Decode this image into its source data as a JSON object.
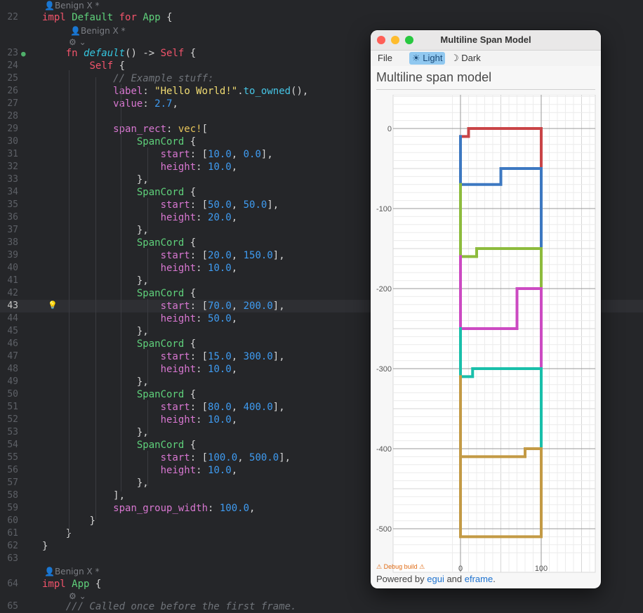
{
  "editor": {
    "author_hints": [
      "Benign X *",
      "Benign X *",
      "Benign X *",
      "Benign X *"
    ],
    "lines": [
      {
        "n": "22",
        "tokens": [
          [
            "impl",
            "k-red"
          ],
          [
            " ",
            ""
          ],
          [
            "Default",
            "k-green"
          ],
          [
            " ",
            ""
          ],
          [
            "for",
            "k-red"
          ],
          [
            " ",
            ""
          ],
          [
            "App",
            "k-green"
          ],
          [
            " {",
            ""
          ]
        ]
      },
      {
        "n": "23",
        "tokens": [
          [
            "    ",
            ""
          ],
          [
            "fn",
            "k-red"
          ],
          [
            " ",
            ""
          ],
          [
            "default",
            "k-cyan"
          ],
          [
            "() -> ",
            ""
          ],
          [
            "Self",
            "k-red"
          ],
          [
            " {",
            ""
          ]
        ]
      },
      {
        "n": "24",
        "tokens": [
          [
            "        ",
            ""
          ],
          [
            "Self",
            "k-red"
          ],
          [
            " {",
            ""
          ]
        ]
      },
      {
        "n": "25",
        "tokens": [
          [
            "            ",
            ""
          ],
          [
            "// Example stuff:",
            "k-com"
          ]
        ]
      },
      {
        "n": "26",
        "tokens": [
          [
            "            ",
            ""
          ],
          [
            "label",
            "k-pink"
          ],
          [
            ": ",
            ""
          ],
          [
            "\"Hello World!\"",
            "k-str"
          ],
          [
            ".",
            ""
          ],
          [
            "to_owned",
            "k-fn"
          ],
          [
            "(),",
            ""
          ]
        ]
      },
      {
        "n": "27",
        "tokens": [
          [
            "            ",
            ""
          ],
          [
            "value",
            "k-pink"
          ],
          [
            ": ",
            ""
          ],
          [
            "2.7",
            "k-num"
          ],
          [
            ",",
            ""
          ]
        ]
      },
      {
        "n": "28",
        "tokens": []
      },
      {
        "n": "29",
        "tokens": [
          [
            "            ",
            ""
          ],
          [
            "span_rect",
            "k-pink"
          ],
          [
            ": ",
            ""
          ],
          [
            "vec!",
            "k-yellow"
          ],
          [
            "[",
            ""
          ]
        ]
      },
      {
        "n": "30",
        "tokens": [
          [
            "                ",
            ""
          ],
          [
            "SpanCord",
            "k-green"
          ],
          [
            " {",
            ""
          ]
        ]
      },
      {
        "n": "31",
        "tokens": [
          [
            "                    ",
            ""
          ],
          [
            "start",
            "k-pink"
          ],
          [
            ": [",
            ""
          ],
          [
            "10.0",
            "k-num"
          ],
          [
            ", ",
            ""
          ],
          [
            "0.0",
            "k-num"
          ],
          [
            "],",
            ""
          ]
        ]
      },
      {
        "n": "32",
        "tokens": [
          [
            "                    ",
            ""
          ],
          [
            "height",
            "k-pink"
          ],
          [
            ": ",
            ""
          ],
          [
            "10.0",
            "k-num"
          ],
          [
            ",",
            ""
          ]
        ]
      },
      {
        "n": "33",
        "tokens": [
          [
            "                ",
            ""
          ],
          [
            "},",
            ""
          ]
        ]
      },
      {
        "n": "34",
        "tokens": [
          [
            "                ",
            ""
          ],
          [
            "SpanCord",
            "k-green"
          ],
          [
            " {",
            ""
          ]
        ]
      },
      {
        "n": "35",
        "tokens": [
          [
            "                    ",
            ""
          ],
          [
            "start",
            "k-pink"
          ],
          [
            ": [",
            ""
          ],
          [
            "50.0",
            "k-num"
          ],
          [
            ", ",
            ""
          ],
          [
            "50.0",
            "k-num"
          ],
          [
            "],",
            ""
          ]
        ]
      },
      {
        "n": "36",
        "tokens": [
          [
            "                    ",
            ""
          ],
          [
            "height",
            "k-pink"
          ],
          [
            ": ",
            ""
          ],
          [
            "20.0",
            "k-num"
          ],
          [
            ",",
            ""
          ]
        ]
      },
      {
        "n": "37",
        "tokens": [
          [
            "                ",
            ""
          ],
          [
            "},",
            ""
          ]
        ]
      },
      {
        "n": "38",
        "tokens": [
          [
            "                ",
            ""
          ],
          [
            "SpanCord",
            "k-green"
          ],
          [
            " {",
            ""
          ]
        ]
      },
      {
        "n": "39",
        "tokens": [
          [
            "                    ",
            ""
          ],
          [
            "start",
            "k-pink"
          ],
          [
            ": [",
            ""
          ],
          [
            "20.0",
            "k-num"
          ],
          [
            ", ",
            ""
          ],
          [
            "150.0",
            "k-num"
          ],
          [
            "],",
            ""
          ]
        ]
      },
      {
        "n": "40",
        "tokens": [
          [
            "                    ",
            ""
          ],
          [
            "height",
            "k-pink"
          ],
          [
            ": ",
            ""
          ],
          [
            "10.0",
            "k-num"
          ],
          [
            ",",
            ""
          ]
        ]
      },
      {
        "n": "41",
        "tokens": [
          [
            "                ",
            ""
          ],
          [
            "},",
            ""
          ]
        ]
      },
      {
        "n": "42",
        "tokens": [
          [
            "                ",
            ""
          ],
          [
            "SpanCord",
            "k-green"
          ],
          [
            " {",
            ""
          ]
        ]
      },
      {
        "n": "43",
        "tokens": [
          [
            "                    ",
            ""
          ],
          [
            "start",
            "k-pink"
          ],
          [
            ": [",
            ""
          ],
          [
            "70.0",
            "k-num"
          ],
          [
            ", ",
            ""
          ],
          [
            "200.0",
            "k-num"
          ],
          [
            "],",
            ""
          ]
        ]
      },
      {
        "n": "44",
        "tokens": [
          [
            "                    ",
            ""
          ],
          [
            "height",
            "k-pink"
          ],
          [
            ": ",
            ""
          ],
          [
            "50.0",
            "k-num"
          ],
          [
            ",",
            ""
          ]
        ]
      },
      {
        "n": "45",
        "tokens": [
          [
            "                ",
            ""
          ],
          [
            "},",
            ""
          ]
        ]
      },
      {
        "n": "46",
        "tokens": [
          [
            "                ",
            ""
          ],
          [
            "SpanCord",
            "k-green"
          ],
          [
            " {",
            ""
          ]
        ]
      },
      {
        "n": "47",
        "tokens": [
          [
            "                    ",
            ""
          ],
          [
            "start",
            "k-pink"
          ],
          [
            ": [",
            ""
          ],
          [
            "15.0",
            "k-num"
          ],
          [
            ", ",
            ""
          ],
          [
            "300.0",
            "k-num"
          ],
          [
            "],",
            ""
          ]
        ]
      },
      {
        "n": "48",
        "tokens": [
          [
            "                    ",
            ""
          ],
          [
            "height",
            "k-pink"
          ],
          [
            ": ",
            ""
          ],
          [
            "10.0",
            "k-num"
          ],
          [
            ",",
            ""
          ]
        ]
      },
      {
        "n": "49",
        "tokens": [
          [
            "                ",
            ""
          ],
          [
            "},",
            ""
          ]
        ]
      },
      {
        "n": "50",
        "tokens": [
          [
            "                ",
            ""
          ],
          [
            "SpanCord",
            "k-green"
          ],
          [
            " {",
            ""
          ]
        ]
      },
      {
        "n": "51",
        "tokens": [
          [
            "                    ",
            ""
          ],
          [
            "start",
            "k-pink"
          ],
          [
            ": [",
            ""
          ],
          [
            "80.0",
            "k-num"
          ],
          [
            ", ",
            ""
          ],
          [
            "400.0",
            "k-num"
          ],
          [
            "],",
            ""
          ]
        ]
      },
      {
        "n": "52",
        "tokens": [
          [
            "                    ",
            ""
          ],
          [
            "height",
            "k-pink"
          ],
          [
            ": ",
            ""
          ],
          [
            "10.0",
            "k-num"
          ],
          [
            ",",
            ""
          ]
        ]
      },
      {
        "n": "53",
        "tokens": [
          [
            "                ",
            ""
          ],
          [
            "},",
            ""
          ]
        ]
      },
      {
        "n": "54",
        "tokens": [
          [
            "                ",
            ""
          ],
          [
            "SpanCord",
            "k-green"
          ],
          [
            " {",
            ""
          ]
        ]
      },
      {
        "n": "55",
        "tokens": [
          [
            "                    ",
            ""
          ],
          [
            "start",
            "k-pink"
          ],
          [
            ": [",
            ""
          ],
          [
            "100.0",
            "k-num"
          ],
          [
            ", ",
            ""
          ],
          [
            "500.0",
            "k-num"
          ],
          [
            "],",
            ""
          ]
        ]
      },
      {
        "n": "56",
        "tokens": [
          [
            "                    ",
            ""
          ],
          [
            "height",
            "k-pink"
          ],
          [
            ": ",
            ""
          ],
          [
            "10.0",
            "k-num"
          ],
          [
            ",",
            ""
          ]
        ]
      },
      {
        "n": "57",
        "tokens": [
          [
            "                ",
            ""
          ],
          [
            "},",
            ""
          ]
        ]
      },
      {
        "n": "58",
        "tokens": [
          [
            "            ",
            ""
          ],
          [
            "],",
            ""
          ]
        ]
      },
      {
        "n": "59",
        "tokens": [
          [
            "            ",
            ""
          ],
          [
            "span_group_width",
            "k-pink"
          ],
          [
            ": ",
            ""
          ],
          [
            "100.0",
            "k-num"
          ],
          [
            ",",
            ""
          ]
        ]
      },
      {
        "n": "60",
        "tokens": [
          [
            "        ",
            ""
          ],
          [
            "}",
            ""
          ]
        ]
      },
      {
        "n": "61",
        "tokens": [
          [
            "    ",
            ""
          ],
          [
            "}",
            ""
          ]
        ]
      },
      {
        "n": "62",
        "tokens": [
          [
            "}",
            ""
          ]
        ]
      },
      {
        "n": "63",
        "tokens": []
      },
      {
        "n": "64",
        "tokens": [
          [
            "impl",
            "k-red"
          ],
          [
            " ",
            ""
          ],
          [
            "App",
            "k-green"
          ],
          [
            " {",
            ""
          ]
        ]
      },
      {
        "n": "65",
        "tokens": [
          [
            "    ",
            ""
          ],
          [
            "/// Called once before the first frame.",
            "k-com"
          ]
        ]
      }
    ],
    "current_line": "43"
  },
  "window": {
    "title": "Multiline Span Model",
    "menu": {
      "file": "File",
      "light": "☀ Light",
      "dark": "☽ Dark"
    },
    "heading": "Multiline span model",
    "debug": "⚠ Debug build ⚠",
    "footer": {
      "prefix": "Powered by ",
      "egui": "egui",
      "and": " and ",
      "eframe": "eframe",
      "suffix": "."
    },
    "traffic_lights": {
      "close": "#ff5f57",
      "minimize": "#febc2e",
      "zoom": "#28c840"
    },
    "accent": "#90c8f0"
  },
  "chart_data": {
    "type": "line",
    "title": "",
    "xlabel": "",
    "ylabel": "",
    "xlim": [
      -8,
      168
    ],
    "ylim": [
      -525,
      42
    ],
    "x_ticks": [
      0,
      100
    ],
    "y_ticks": [
      0,
      -100,
      -200,
      -300,
      -400,
      -500
    ],
    "grid": true,
    "series": [
      {
        "color": "#c94447",
        "points": [
          [
            0,
            -10
          ],
          [
            10,
            -10
          ],
          [
            10,
            0
          ],
          [
            100,
            0
          ],
          [
            100,
            -50
          ]
        ]
      },
      {
        "color": "#3d78c1",
        "points": [
          [
            0,
            -70
          ],
          [
            0,
            -10
          ]
        ]
      },
      {
        "color": "#3d78c1",
        "points": [
          [
            0,
            -70
          ],
          [
            50,
            -70
          ],
          [
            50,
            -50
          ],
          [
            100,
            -50
          ],
          [
            100,
            -150
          ]
        ]
      },
      {
        "color": "#8dbb3d",
        "points": [
          [
            0,
            -160
          ],
          [
            0,
            -70
          ]
        ]
      },
      {
        "color": "#8dbb3d",
        "points": [
          [
            0,
            -160
          ],
          [
            20,
            -160
          ],
          [
            20,
            -150
          ],
          [
            100,
            -150
          ],
          [
            100,
            -200
          ]
        ]
      },
      {
        "color": "#cc4ac2",
        "points": [
          [
            0,
            -250
          ],
          [
            0,
            -160
          ]
        ]
      },
      {
        "color": "#cc4ac2",
        "points": [
          [
            0,
            -250
          ],
          [
            70,
            -250
          ],
          [
            70,
            -200
          ],
          [
            100,
            -200
          ],
          [
            100,
            -300
          ]
        ]
      },
      {
        "color": "#19bfaa",
        "points": [
          [
            0,
            -310
          ],
          [
            0,
            -250
          ]
        ]
      },
      {
        "color": "#19bfaa",
        "points": [
          [
            0,
            -310
          ],
          [
            15,
            -310
          ],
          [
            15,
            -300
          ],
          [
            100,
            -300
          ],
          [
            100,
            -400
          ]
        ]
      },
      {
        "color": "#c39a45",
        "points": [
          [
            0,
            -410
          ],
          [
            0,
            -310
          ]
        ]
      },
      {
        "color": "#c39a45",
        "points": [
          [
            0,
            -410
          ],
          [
            80,
            -410
          ],
          [
            80,
            -400
          ],
          [
            100,
            -400
          ],
          [
            100,
            -510
          ],
          [
            0,
            -510
          ],
          [
            0,
            -410
          ]
        ]
      }
    ]
  }
}
